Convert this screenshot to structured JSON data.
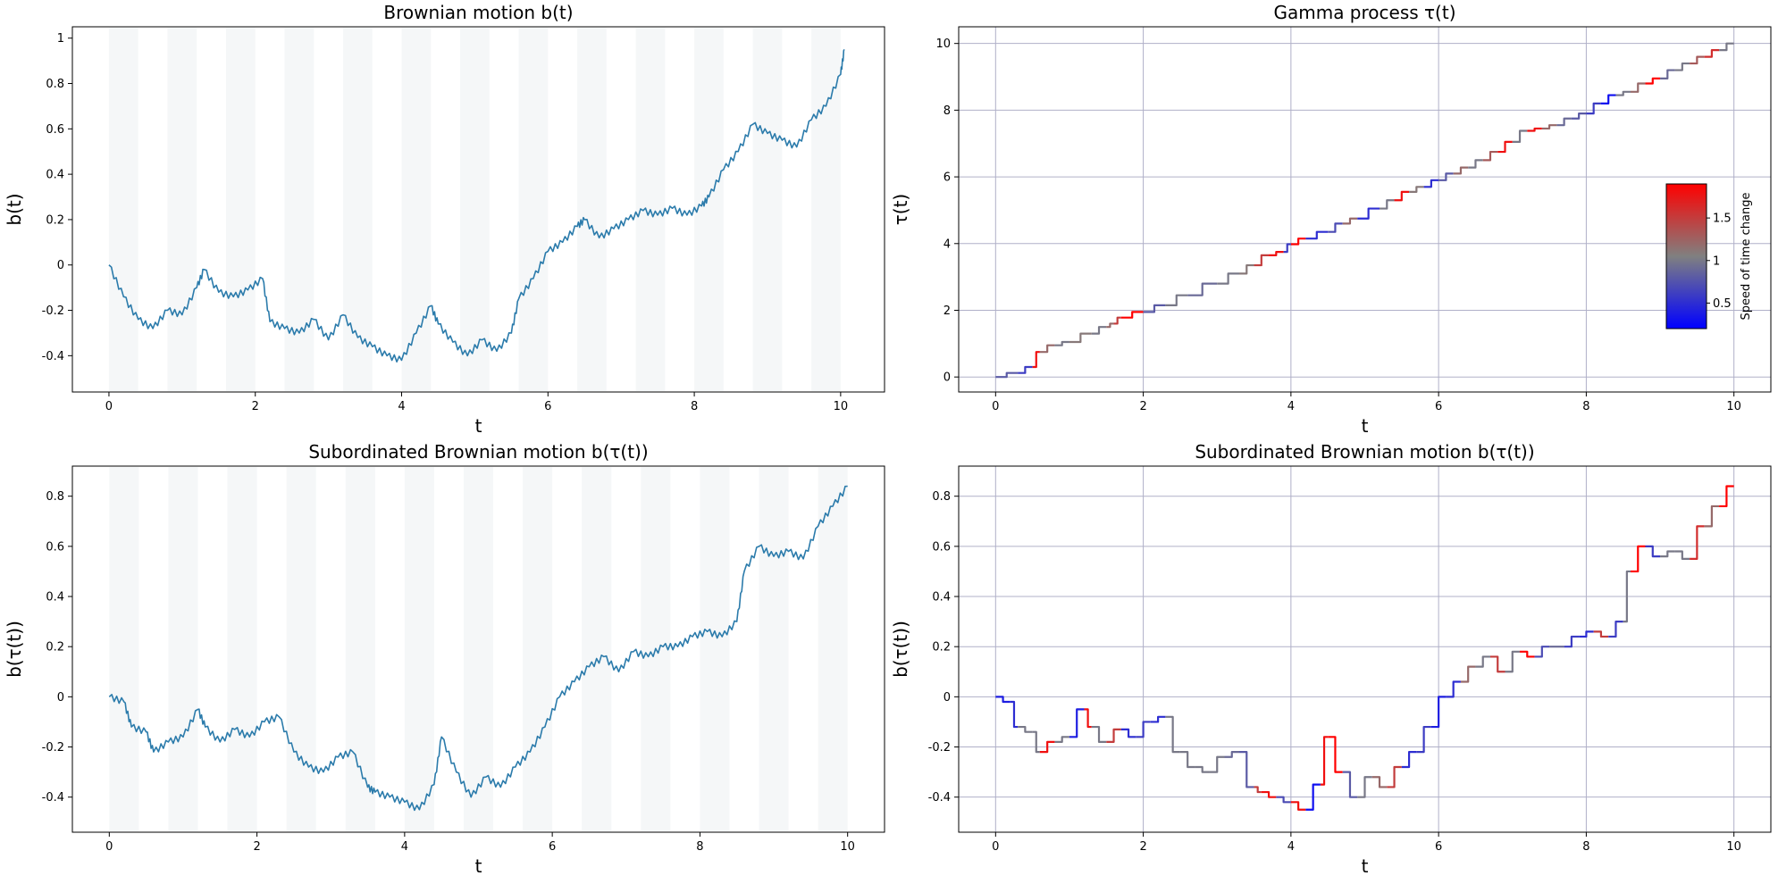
{
  "chart_data": [
    {
      "type": "line",
      "title": "Brownian motion b(t)",
      "xlabel": "t",
      "ylabel": "b(t)",
      "xlim": [
        -0.5,
        10.6
      ],
      "ylim": [
        -0.56,
        1.05
      ],
      "xticks": [
        0,
        2,
        4,
        6,
        8,
        10
      ],
      "yticks": [
        -0.4,
        -0.2,
        0.0,
        0.2,
        0.4,
        0.6,
        0.8,
        1.0
      ],
      "grid": false,
      "background_bands": true,
      "series": [
        {
          "color": "#2b7bab",
          "x": [
            0,
            0.2,
            0.4,
            0.6,
            0.8,
            1.0,
            1.2,
            1.3,
            1.5,
            1.7,
            1.9,
            2.1,
            2.2,
            2.4,
            2.6,
            2.8,
            3.0,
            3.2,
            3.4,
            3.6,
            3.8,
            4.0,
            4.2,
            4.4,
            4.5,
            4.7,
            4.9,
            5.1,
            5.3,
            5.5,
            5.6,
            5.8,
            6.0,
            6.2,
            6.4,
            6.5,
            6.7,
            6.9,
            7.1,
            7.3,
            7.5,
            7.7,
            7.9,
            8.1,
            8.2,
            8.4,
            8.6,
            8.8,
            9.0,
            9.2,
            9.4,
            9.6,
            9.8,
            10.0,
            10.05
          ],
          "y": [
            0.0,
            -0.14,
            -0.24,
            -0.28,
            -0.2,
            -0.22,
            -0.1,
            -0.02,
            -0.12,
            -0.14,
            -0.11,
            -0.06,
            -0.25,
            -0.28,
            -0.3,
            -0.24,
            -0.33,
            -0.22,
            -0.32,
            -0.36,
            -0.4,
            -0.42,
            -0.3,
            -0.18,
            -0.26,
            -0.34,
            -0.4,
            -0.33,
            -0.38,
            -0.3,
            -0.15,
            -0.06,
            0.06,
            0.1,
            0.17,
            0.2,
            0.12,
            0.16,
            0.2,
            0.24,
            0.22,
            0.25,
            0.22,
            0.26,
            0.3,
            0.42,
            0.5,
            0.62,
            0.58,
            0.55,
            0.52,
            0.64,
            0.7,
            0.84,
            0.95
          ]
        }
      ]
    },
    {
      "type": "line",
      "title": "Gamma process τ(t)",
      "xlabel": "t",
      "ylabel": "τ(t)",
      "xlim": [
        -0.5,
        10.5
      ],
      "ylim": [
        -0.45,
        10.5
      ],
      "xticks": [
        0,
        2,
        4,
        6,
        8,
        10
      ],
      "yticks": [
        0,
        2,
        4,
        6,
        8,
        10
      ],
      "grid": true,
      "colorbar": {
        "label": "Speed of time change",
        "ticks": [
          0.5,
          1.0,
          1.5
        ],
        "range": [
          0.2,
          1.9
        ],
        "colors": [
          "#0000ff",
          "#808080",
          "#ff0000"
        ]
      },
      "series": [
        {
          "colored_by": "speed",
          "x": [
            0,
            0.3,
            0.5,
            0.6,
            0.8,
            1.0,
            1.3,
            1.5,
            1.6,
            1.7,
            2.0,
            2.3,
            2.6,
            3.0,
            3.3,
            3.5,
            3.7,
            3.9,
            4.0,
            4.2,
            4.5,
            4.7,
            4.9,
            5.2,
            5.4,
            5.6,
            5.8,
            6.0,
            6.2,
            6.4,
            6.6,
            6.8,
            7.0,
            7.2,
            7.4,
            7.6,
            7.8,
            8.0,
            8.2,
            8.4,
            8.6,
            8.8,
            9.0,
            9.2,
            9.4,
            9.6,
            9.8,
            10.0
          ],
          "y": [
            0,
            0.12,
            0.3,
            0.75,
            0.95,
            1.05,
            1.3,
            1.5,
            1.6,
            1.78,
            1.95,
            2.15,
            2.45,
            2.8,
            3.1,
            3.35,
            3.65,
            3.75,
            3.98,
            4.15,
            4.35,
            4.6,
            4.75,
            5.05,
            5.3,
            5.55,
            5.7,
            5.9,
            6.1,
            6.28,
            6.5,
            6.75,
            7.05,
            7.38,
            7.45,
            7.55,
            7.75,
            7.9,
            8.2,
            8.45,
            8.55,
            8.8,
            8.95,
            9.2,
            9.4,
            9.6,
            9.8,
            10.0
          ],
          "speed": [
            0.8,
            0.6,
            1.8,
            1.2,
            1.0,
            1.1,
            1.0,
            1.2,
            1.5,
            1.9,
            0.8,
            1.0,
            0.9,
            1.0,
            1.1,
            1.5,
            1.8,
            0.6,
            1.9,
            0.5,
            0.7,
            1.2,
            0.5,
            1.0,
            1.8,
            1.1,
            0.5,
            0.8,
            1.2,
            1.0,
            1.3,
            1.8,
            1.0,
            1.8,
            1.2,
            0.9,
            0.8,
            0.6,
            0.3,
            1.0,
            1.2,
            1.9,
            0.9,
            1.0,
            1.3,
            1.6,
            1.0,
            1.2
          ]
        }
      ]
    },
    {
      "type": "line",
      "title": "Subordinated Brownian motion b(τ(t))",
      "xlabel": "t",
      "ylabel": "b(τ(t))",
      "xlim": [
        -0.5,
        10.5
      ],
      "ylim": [
        -0.54,
        0.92
      ],
      "xticks": [
        0,
        2,
        4,
        6,
        8,
        10
      ],
      "yticks": [
        -0.4,
        -0.2,
        0.0,
        0.2,
        0.4,
        0.6,
        0.8
      ],
      "grid": false,
      "background_bands": true,
      "series": [
        {
          "color": "#2b7bab",
          "x": [
            0,
            0.2,
            0.3,
            0.5,
            0.6,
            0.8,
            1.0,
            1.2,
            1.3,
            1.5,
            1.7,
            1.9,
            2.1,
            2.3,
            2.5,
            2.7,
            2.9,
            3.1,
            3.3,
            3.5,
            3.6,
            3.8,
            4.0,
            4.2,
            4.4,
            4.5,
            4.7,
            4.9,
            5.1,
            5.3,
            5.5,
            5.7,
            5.9,
            6.1,
            6.3,
            6.5,
            6.7,
            6.9,
            7.1,
            7.3,
            7.5,
            7.7,
            7.9,
            8.1,
            8.3,
            8.5,
            8.6,
            8.8,
            9.0,
            9.2,
            9.4,
            9.6,
            9.8,
            10.0
          ],
          "y": [
            0.0,
            -0.02,
            -0.12,
            -0.14,
            -0.22,
            -0.18,
            -0.16,
            -0.05,
            -0.12,
            -0.18,
            -0.13,
            -0.16,
            -0.1,
            -0.08,
            -0.22,
            -0.28,
            -0.3,
            -0.24,
            -0.22,
            -0.36,
            -0.38,
            -0.4,
            -0.42,
            -0.45,
            -0.35,
            -0.16,
            -0.3,
            -0.4,
            -0.32,
            -0.36,
            -0.28,
            -0.22,
            -0.12,
            0.0,
            0.06,
            0.12,
            0.16,
            0.1,
            0.18,
            0.16,
            0.2,
            0.2,
            0.24,
            0.26,
            0.24,
            0.3,
            0.5,
            0.6,
            0.56,
            0.58,
            0.55,
            0.68,
            0.76,
            0.84
          ]
        }
      ]
    },
    {
      "type": "line",
      "title": "Subordinated Brownian motion b(τ(t))",
      "xlabel": "t",
      "ylabel": "b(τ(t))",
      "xlim": [
        -0.5,
        10.5
      ],
      "ylim": [
        -0.54,
        0.92
      ],
      "xticks": [
        0,
        2,
        4,
        6,
        8,
        10
      ],
      "yticks": [
        -0.4,
        -0.2,
        0.0,
        0.2,
        0.4,
        0.6,
        0.8
      ],
      "grid": true,
      "series": [
        {
          "colored_by": "speed",
          "x": [
            0,
            0.2,
            0.3,
            0.5,
            0.6,
            0.8,
            1.0,
            1.2,
            1.3,
            1.5,
            1.7,
            1.9,
            2.1,
            2.3,
            2.5,
            2.7,
            2.9,
            3.1,
            3.3,
            3.5,
            3.6,
            3.8,
            4.0,
            4.2,
            4.4,
            4.5,
            4.7,
            4.9,
            5.1,
            5.3,
            5.5,
            5.7,
            5.9,
            6.1,
            6.3,
            6.5,
            6.7,
            6.9,
            7.1,
            7.3,
            7.5,
            7.7,
            7.9,
            8.1,
            8.3,
            8.5,
            8.6,
            8.8,
            9.0,
            9.2,
            9.4,
            9.6,
            9.8,
            10.0
          ],
          "y": [
            0.0,
            -0.02,
            -0.12,
            -0.14,
            -0.22,
            -0.18,
            -0.16,
            -0.05,
            -0.12,
            -0.18,
            -0.13,
            -0.16,
            -0.1,
            -0.08,
            -0.22,
            -0.28,
            -0.3,
            -0.24,
            -0.22,
            -0.36,
            -0.38,
            -0.4,
            -0.42,
            -0.45,
            -0.35,
            -0.16,
            -0.3,
            -0.4,
            -0.32,
            -0.36,
            -0.28,
            -0.22,
            -0.12,
            0.0,
            0.06,
            0.12,
            0.16,
            0.1,
            0.18,
            0.16,
            0.2,
            0.2,
            0.24,
            0.26,
            0.24,
            0.3,
            0.5,
            0.6,
            0.56,
            0.58,
            0.55,
            0.68,
            0.76,
            0.84
          ],
          "speed": [
            0.4,
            0.5,
            1.0,
            1.0,
            1.8,
            1.0,
            0.4,
            1.8,
            1.0,
            1.5,
            0.5,
            0.6,
            0.5,
            1.0,
            1.0,
            1.0,
            1.0,
            0.9,
            0.8,
            1.5,
            1.8,
            0.7,
            1.8,
            0.3,
            1.8,
            1.9,
            0.8,
            1.0,
            1.2,
            1.5,
            0.5,
            0.6,
            0.4,
            0.5,
            1.2,
            1.0,
            1.5,
            1.0,
            1.9,
            0.7,
            0.9,
            0.6,
            0.5,
            1.5,
            0.6,
            1.0,
            1.9,
            0.6,
            1.0,
            1.0,
            1.6,
            1.2,
            1.9,
            0.5
          ]
        }
      ]
    }
  ]
}
